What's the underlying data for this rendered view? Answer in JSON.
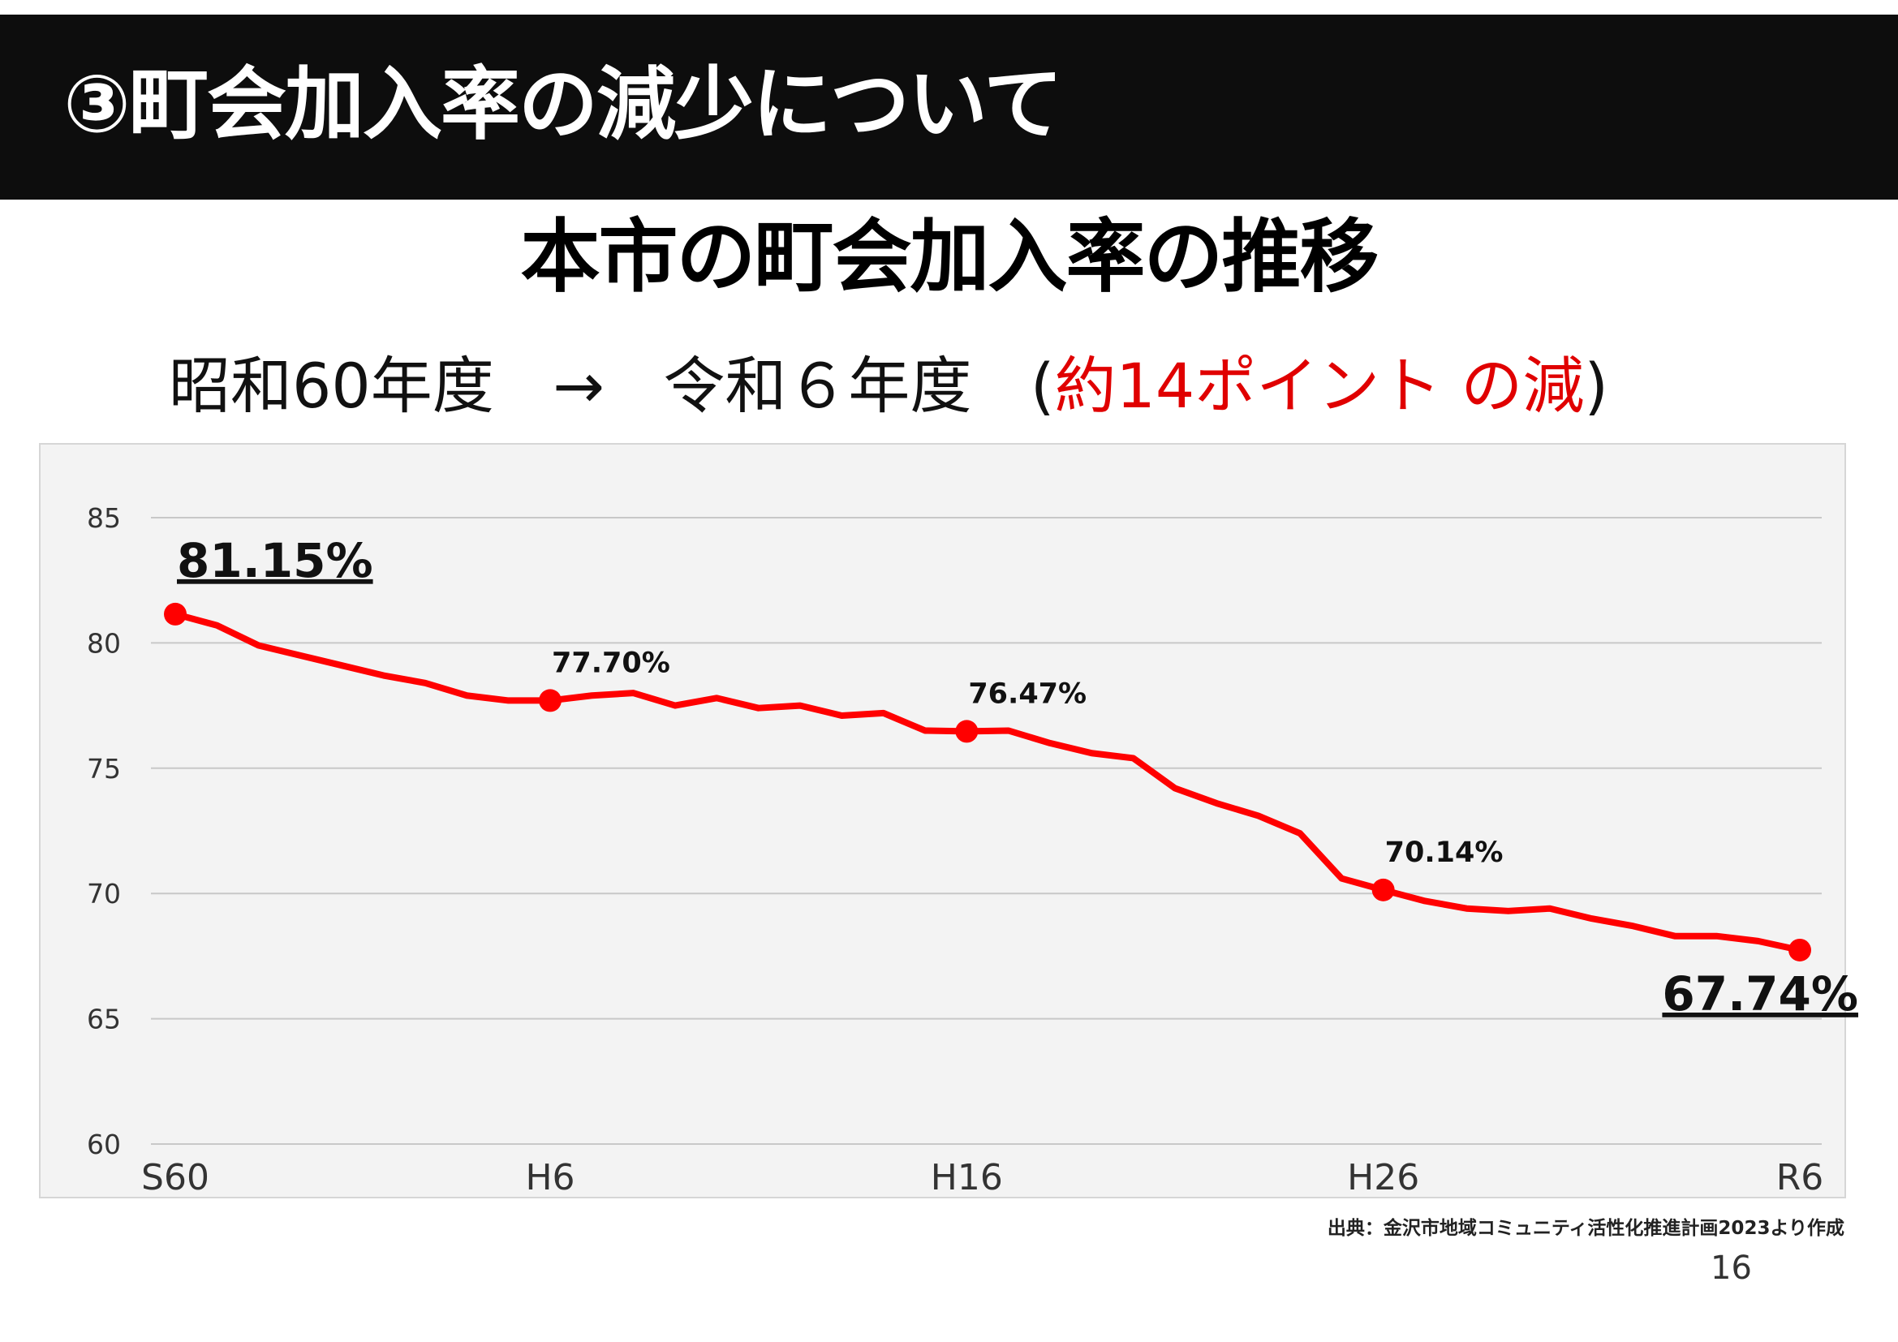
{
  "header": {
    "title": "③町会加入率の減少について"
  },
  "subtitle": "本市の町会加入率の推移",
  "comparison": {
    "from": "昭和60年度",
    "arrow": "→",
    "to": "令和６年度",
    "open_paren": "(",
    "change": "約14ポイント の減",
    "close_paren": ")"
  },
  "colors": {
    "line": "#ff0000",
    "header_bg": "#0d0d0d",
    "plot_bg": "#f3f3f3",
    "highlight_text": "#e00000"
  },
  "chart_data": {
    "type": "line",
    "title": "本市の町会加入率の推移",
    "xlabel": "",
    "ylabel": "",
    "ylim": [
      60,
      85
    ],
    "yticks": [
      85,
      80,
      75,
      70,
      65,
      60
    ],
    "grid": true,
    "x_tick_labels": [
      {
        "index": 0,
        "label": "S60"
      },
      {
        "index": 9,
        "label": "H6"
      },
      {
        "index": 19,
        "label": "H16"
      },
      {
        "index": 29,
        "label": "H26"
      },
      {
        "index": 39,
        "label": "R6"
      }
    ],
    "series": [
      {
        "name": "町会加入率",
        "values": [
          81.15,
          80.7,
          79.9,
          79.5,
          79.1,
          78.7,
          78.4,
          77.9,
          77.7,
          77.7,
          77.9,
          78.0,
          77.5,
          77.8,
          77.4,
          77.5,
          77.1,
          77.2,
          76.5,
          76.47,
          76.5,
          76.0,
          75.6,
          75.4,
          74.2,
          73.6,
          73.1,
          72.4,
          70.6,
          70.14,
          69.7,
          69.4,
          69.3,
          69.4,
          69.0,
          68.7,
          68.3,
          68.3,
          68.1,
          67.74
        ]
      }
    ],
    "annotations": [
      {
        "index": 0,
        "label": "81.15%",
        "style": "large"
      },
      {
        "index": 9,
        "label": "77.70%",
        "style": "small"
      },
      {
        "index": 19,
        "label": "76.47%",
        "style": "small"
      },
      {
        "index": 29,
        "label": "70.14%",
        "style": "small"
      },
      {
        "index": 39,
        "label": "67.74%",
        "style": "large"
      }
    ]
  },
  "source": "出典：金沢市地域コミュニティ活性化推進計画2023より作成",
  "page_number": "16"
}
